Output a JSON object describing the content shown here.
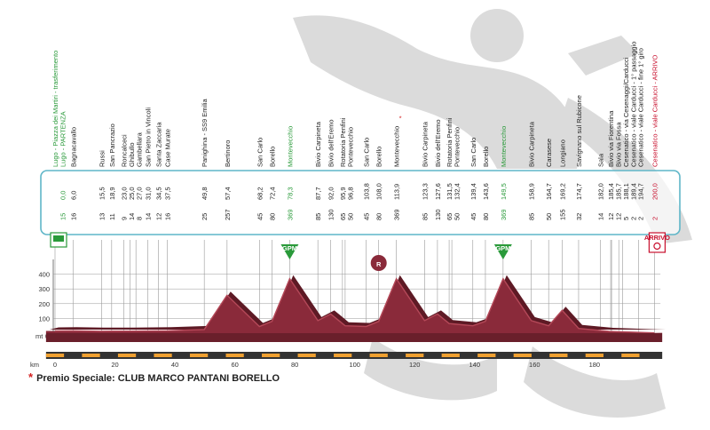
{
  "chart_data": {
    "type": "area",
    "title": "",
    "ylabel": "mt",
    "xlabel": "km",
    "ylim": [
      0,
      500
    ],
    "xlim": [
      -3,
      202
    ],
    "y_ticks": [
      0,
      100,
      200,
      300,
      400
    ],
    "x_ticks": [
      0,
      20,
      40,
      60,
      80,
      100,
      120,
      140,
      160,
      180
    ],
    "colors": {
      "profile": "#8a2a3a",
      "start_finish": "#2a9a3a",
      "sprint": "#2a9a3a",
      "arrivo": "#c8102e",
      "road": "#f0a030"
    },
    "profile": [
      [
        0,
        15
      ],
      [
        6,
        16
      ],
      [
        15,
        13
      ],
      [
        25,
        14
      ],
      [
        37.5,
        16
      ],
      [
        49.8,
        25
      ],
      [
        57.4,
        257
      ],
      [
        68.2,
        45
      ],
      [
        72.4,
        80
      ],
      [
        78.3,
        369
      ],
      [
        87.7,
        85
      ],
      [
        92,
        130
      ],
      [
        96.8,
        50
      ],
      [
        103.8,
        45
      ],
      [
        108,
        80
      ],
      [
        113.9,
        369
      ],
      [
        123.3,
        85
      ],
      [
        127.6,
        130
      ],
      [
        131.5,
        65
      ],
      [
        139.4,
        50
      ],
      [
        143.6,
        80
      ],
      [
        149.5,
        369
      ],
      [
        158.9,
        85
      ],
      [
        164.7,
        50
      ],
      [
        169.2,
        155
      ],
      [
        174.7,
        32
      ],
      [
        185,
        12
      ],
      [
        200,
        2
      ]
    ],
    "locations": [
      {
        "name": "Lugo - Piazza dei Martiri - trasferimento",
        "km": "",
        "alt": "",
        "color": "green"
      },
      {
        "name": "Lugo - PARTENZA",
        "km": "0,0",
        "alt": "15",
        "color": "green"
      },
      {
        "name": "Bagnacavallo",
        "km": "6,0",
        "alt": "16"
      },
      {
        "name": "Russi",
        "km": "15,5",
        "alt": "13"
      },
      {
        "name": "San Pancrazio",
        "km": "18,9",
        "alt": "11"
      },
      {
        "name": "Roncalceci",
        "km": "23,0",
        "alt": "9"
      },
      {
        "name": "Ghibullo",
        "km": "25,0",
        "alt": "14"
      },
      {
        "name": "Gambellara",
        "km": "27,0",
        "alt": "8"
      },
      {
        "name": "San Pietro in Vincoli",
        "km": "31,0",
        "alt": "14"
      },
      {
        "name": "Santa Zaccaria",
        "km": "34,5",
        "alt": "12"
      },
      {
        "name": "Case Murate",
        "km": "37,5",
        "alt": "16"
      },
      {
        "name": "Panighina - SS9 Emilia",
        "km": "49,8",
        "alt": "25"
      },
      {
        "name": "Bertinoro",
        "km": "57,4",
        "alt": "257"
      },
      {
        "name": "San Carlo",
        "km": "68,2",
        "alt": "45"
      },
      {
        "name": "Borello",
        "km": "72,4",
        "alt": "80"
      },
      {
        "name": "Montevecchio",
        "km": "78,3",
        "alt": "369",
        "color": "green"
      },
      {
        "name": "Bivio Carpineta",
        "km": "87,7",
        "alt": "85"
      },
      {
        "name": "Bivio dell'Eremo",
        "km": "92,0",
        "alt": "130"
      },
      {
        "name": "Rotatoria Penfini",
        "km": "95,9",
        "alt": "65"
      },
      {
        "name": "Pontevecchio",
        "km": "96,8",
        "alt": "50"
      },
      {
        "name": "San Carlo",
        "km": "103,8",
        "alt": "45"
      },
      {
        "name": "Borello",
        "km": "108,0",
        "alt": "80"
      },
      {
        "name": "Montevecchio",
        "km": "113,9",
        "alt": "369",
        "star": true
      },
      {
        "name": "Bivio Carpineta",
        "km": "123,3",
        "alt": "85"
      },
      {
        "name": "Bivio dell'Eremo",
        "km": "127,6",
        "alt": "130"
      },
      {
        "name": "Rotatoria Penfini",
        "km": "131,5",
        "alt": "65"
      },
      {
        "name": "Pontevecchio",
        "km": "132,4",
        "alt": "50"
      },
      {
        "name": "San Carlo",
        "km": "139,4",
        "alt": "45"
      },
      {
        "name": "Borello",
        "km": "143,6",
        "alt": "80"
      },
      {
        "name": "Montevecchio",
        "km": "149,5",
        "alt": "369",
        "color": "green"
      },
      {
        "name": "Bivio Carpineta",
        "km": "158,9",
        "alt": "85"
      },
      {
        "name": "Carasese",
        "km": "164,7",
        "alt": "50"
      },
      {
        "name": "Longiano",
        "km": "169,2",
        "alt": "155"
      },
      {
        "name": "Savignano sul Rubicone",
        "km": "174,7",
        "alt": "32"
      },
      {
        "name": "Sala",
        "km": "182,0",
        "alt": "14"
      },
      {
        "name": "Bivio via Fiorentina",
        "km": "185,4",
        "alt": "12"
      },
      {
        "name": "Bivio via Fossa",
        "km": "185,7",
        "alt": "12"
      },
      {
        "name": "Cesenatico - via Cesenaggi/Carducci",
        "km": "188,1",
        "alt": "5"
      },
      {
        "name": "Cesenatico - viale Carducci - 1° passaggio",
        "km": "189,4",
        "alt": "2"
      },
      {
        "name": "Cesenatico - viale Carducci - fine 1° giro",
        "km": "194,7",
        "alt": "2"
      },
      {
        "name": "Cesenatico - viale Carducci - ARRIVO",
        "km": "200,0",
        "alt": "2",
        "color": "red"
      }
    ],
    "markers": [
      {
        "type": "start-flag",
        "km": 0
      },
      {
        "type": "gpm",
        "label": "GPM",
        "km": 78.3
      },
      {
        "type": "gpm",
        "label": "GPM",
        "km": 149.5
      },
      {
        "type": "refuel",
        "label": "R",
        "km": 108
      },
      {
        "type": "arrivo",
        "label": "ARRIVO",
        "km": 200
      }
    ]
  },
  "footer": {
    "star": "*",
    "note": "Premio Speciale: CLUB MARCO PANTANI BORELLO"
  }
}
